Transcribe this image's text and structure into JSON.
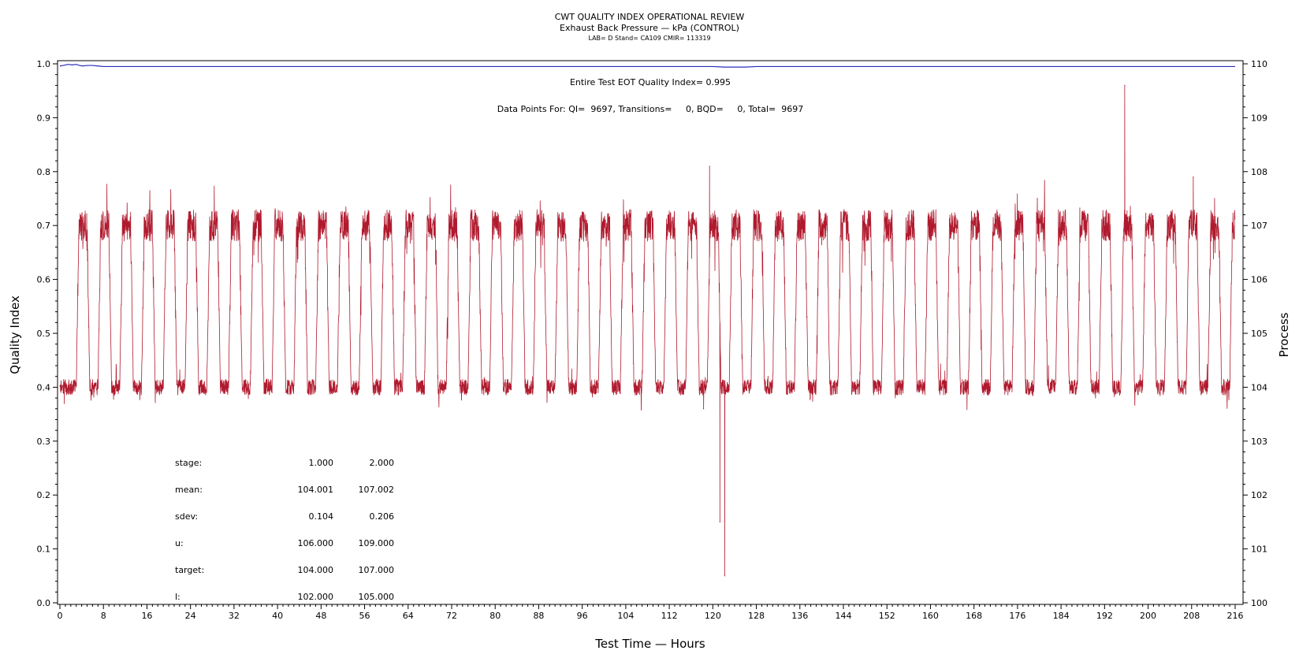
{
  "chart_data": {
    "type": "line",
    "title": "CWT QUALITY INDEX OPERATIONAL REVIEW",
    "subtitle": "Exhaust Back Pressure — kPa (CONTROL)",
    "subtitle2": "LAB= D Stand= CA109 CMIR= 113319",
    "xlabel": "Test Time — Hours",
    "ylabel_left": "Quality Index",
    "ylabel_right": "Process",
    "xlim": [
      0,
      216
    ],
    "ylim_left": [
      0.0,
      1.0
    ],
    "ylim_right": [
      100,
      110
    ],
    "x_ticks": [
      0,
      8,
      16,
      24,
      32,
      40,
      48,
      56,
      64,
      72,
      80,
      88,
      96,
      104,
      112,
      120,
      128,
      136,
      144,
      152,
      160,
      168,
      176,
      184,
      192,
      200,
      208,
      216
    ],
    "y_ticks_left": [
      "0.0",
      "0.1",
      "0.2",
      "0.3",
      "0.4",
      "0.5",
      "0.6",
      "0.7",
      "0.8",
      "0.9",
      "1.0"
    ],
    "y_ticks_right": [
      "100",
      "101",
      "102",
      "103",
      "104",
      "105",
      "106",
      "107",
      "108",
      "109",
      "110"
    ],
    "annotations": {
      "eot": "Entire Test EOT Quality Index=  0.995",
      "datapoints": "Data Points For: QI=  9697, Transitions=     0, BQD=     0, Total=  9697"
    },
    "stats_table": {
      "rows": [
        {
          "label": "stage:",
          "v1": "1.000",
          "v2": "2.000"
        },
        {
          "label": "mean:",
          "v1": "104.001",
          "v2": "107.002"
        },
        {
          "label": "sdev:",
          "v1": "0.104",
          "v2": "0.206"
        },
        {
          "label": "u:",
          "v1": "106.000",
          "v2": "109.000"
        },
        {
          "label": "target:",
          "v1": "104.000",
          "v2": "107.000"
        },
        {
          "label": "l:",
          "v1": "102.000",
          "v2": "105.000"
        }
      ]
    },
    "series": [
      {
        "axis": "left",
        "color": "#2b2bbb",
        "x": [
          0,
          0.6,
          1.5,
          2.3,
          3.0,
          3.6,
          4.2,
          5.0,
          6.0,
          7.0,
          8.0,
          60,
          120,
          122,
          124,
          126,
          128,
          130,
          140,
          216
        ],
        "y": [
          0.996,
          0.997,
          0.999,
          0.998,
          0.999,
          0.997,
          0.996,
          0.997,
          0.997,
          0.996,
          0.995,
          0.995,
          0.995,
          0.994,
          0.994,
          0.994,
          0.995,
          0.995,
          0.995,
          0.995
        ]
      },
      {
        "axis": "right",
        "color": "#b01a2e",
        "kind": "cyclic",
        "cycle_start_hours": 3,
        "cycle_period_hours": 4,
        "high_phase_hours": 1.5,
        "transition_hours": 0.5,
        "low_level": 104.0,
        "high_level": 107.0,
        "low_noise": 0.15,
        "high_noise": 0.3,
        "spikes": [
          {
            "x": 0.8,
            "y": 103.7
          },
          {
            "x": 118.3,
            "y": 103.6
          },
          {
            "x": 119.4,
            "y": 108.1
          },
          {
            "x": 121.3,
            "y": 101.5
          },
          {
            "x": 122.2,
            "y": 100.5
          },
          {
            "x": 195.7,
            "y": 109.6
          },
          {
            "x": 208.3,
            "y": 107.9
          }
        ]
      }
    ]
  },
  "colors": {
    "qi_line": "#2b2bbb",
    "process_line": "#b01a2e",
    "axis": "#000000"
  }
}
